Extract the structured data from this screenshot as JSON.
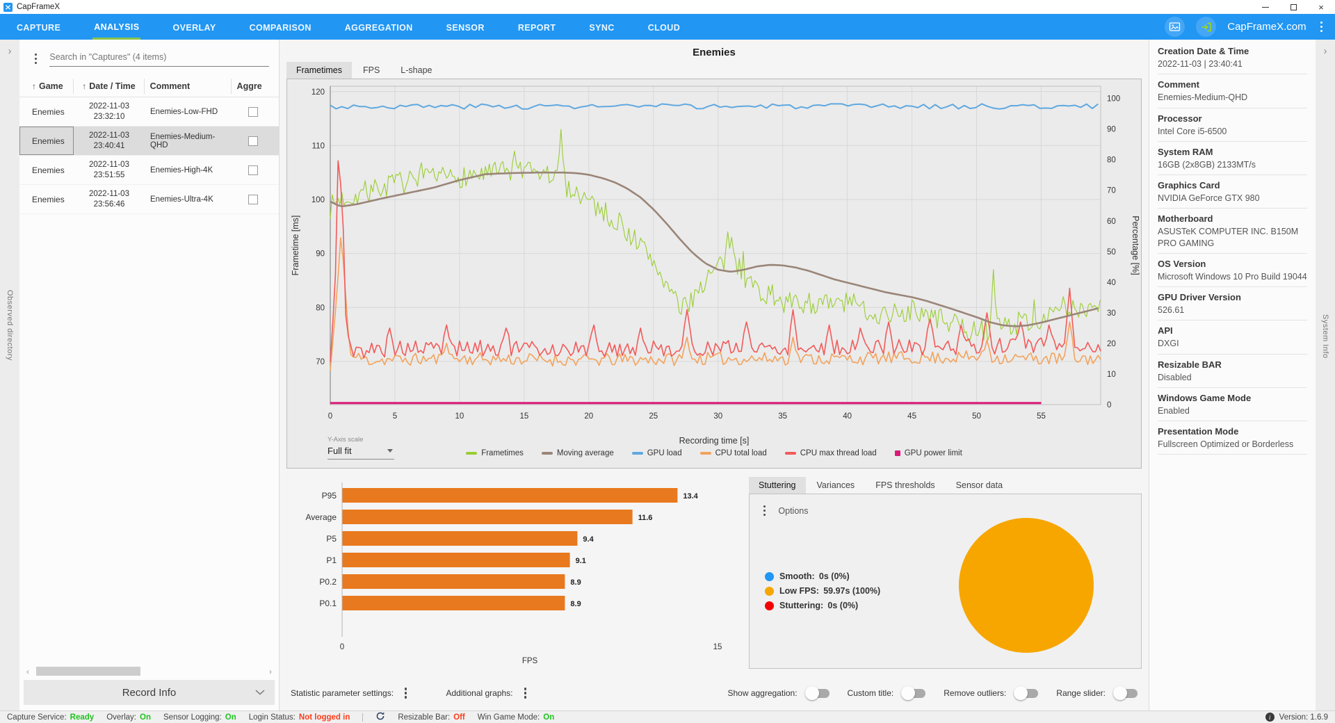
{
  "window": {
    "title": "CapFrameX",
    "app_icon": "capframex-logo"
  },
  "navbar": {
    "items": [
      "CAPTURE",
      "ANALYSIS",
      "OVERLAY",
      "COMPARISON",
      "AGGREGATION",
      "SENSOR",
      "REPORT",
      "SYNC",
      "CLOUD"
    ],
    "active": "ANALYSIS",
    "site_link": "CapFrameX.com",
    "accent": "#2196F3",
    "active_underline": "#8BC34A"
  },
  "left_rail": {
    "label": "Observed directory"
  },
  "right_rail": {
    "label": "System Info"
  },
  "captures_panel": {
    "search_placeholder": "Search in \"Captures\" (4 items)",
    "columns": [
      "Game",
      "Date / Time",
      "Comment",
      "Aggre"
    ],
    "rows": [
      {
        "game": "Enemies",
        "date": "2022-11-03",
        "time": "23:32:10",
        "comment": "Enemies-Low-FHD",
        "selected": false,
        "checked": false
      },
      {
        "game": "Enemies",
        "date": "2022-11-03",
        "time": "23:40:41",
        "comment": "Enemies-Medium-QHD",
        "selected": true,
        "checked": false
      },
      {
        "game": "Enemies",
        "date": "2022-11-03",
        "time": "23:51:55",
        "comment": "Enemies-High-4K",
        "selected": false,
        "checked": false
      },
      {
        "game": "Enemies",
        "date": "2022-11-03",
        "time": "23:56:46",
        "comment": "Enemies-Ultra-4K",
        "selected": false,
        "checked": false
      }
    ],
    "record_info_label": "Record Info"
  },
  "chart_card": {
    "title": "Enemies",
    "tabs": [
      "Frametimes",
      "FPS",
      "L-shape"
    ],
    "active_tab": "Frametimes",
    "yaxis_scale_label": "Y-Axis scale",
    "yaxis_scale_value": "Full fit"
  },
  "chart_data": [
    {
      "type": "line",
      "title": "Enemies",
      "xlabel": "Recording time [s]",
      "ylabel_left": "Frametime [ms]",
      "ylabel_right": "Percentage [%]",
      "x_range": [
        0,
        59.6
      ],
      "x_ticks": [
        0,
        5,
        10,
        15,
        20,
        25,
        30,
        35,
        40,
        45,
        50,
        55
      ],
      "y_left_range": [
        62,
        121
      ],
      "y_left_ticks": [
        70,
        80,
        90,
        100,
        110,
        120
      ],
      "y_right_range": [
        0,
        104
      ],
      "y_right_ticks": [
        0,
        10,
        20,
        30,
        40,
        50,
        60,
        70,
        80,
        90,
        100
      ],
      "grid": true,
      "legend_position": "bottom",
      "series": [
        {
          "name": "Frametimes",
          "color": "#9ACD32",
          "axis": "left",
          "width": 1.1,
          "step": 0.15,
          "seed": 7,
          "noise": 2.1,
          "spike_chance": 0.04,
          "spike_max": 4.5,
          "trend": [
            [
              0,
              98.5
            ],
            [
              0.6,
              100
            ],
            [
              1.5,
              100.5
            ],
            [
              3,
              101.5
            ],
            [
              5,
              103
            ],
            [
              7,
              103.5
            ],
            [
              9,
              104
            ],
            [
              11,
              104.5
            ],
            [
              13,
              105
            ],
            [
              15,
              105
            ],
            [
              17,
              104.5
            ],
            [
              18,
              103
            ],
            [
              19,
              101.5
            ],
            [
              20,
              100
            ],
            [
              21,
              98
            ],
            [
              22,
              96
            ],
            [
              23,
              94
            ],
            [
              24,
              91.5
            ],
            [
              25,
              88.5
            ],
            [
              26,
              84.5
            ],
            [
              26.7,
              81
            ],
            [
              27.3,
              79.5
            ],
            [
              28,
              82
            ],
            [
              29,
              85
            ],
            [
              30,
              87.5
            ],
            [
              30.7,
              89
            ],
            [
              31.3,
              88.5
            ],
            [
              32,
              86
            ],
            [
              33,
              83.5
            ],
            [
              34,
              82
            ],
            [
              35,
              81
            ],
            [
              36,
              80.5
            ],
            [
              37,
              81
            ],
            [
              38,
              80.5
            ],
            [
              39,
              80.5
            ],
            [
              40,
              81
            ],
            [
              41,
              80
            ],
            [
              42,
              79
            ],
            [
              43,
              78.5
            ],
            [
              44,
              79
            ],
            [
              45,
              79.5
            ],
            [
              46,
              78.5
            ],
            [
              47,
              78
            ],
            [
              48,
              77
            ],
            [
              49,
              76
            ],
            [
              50,
              75.5
            ],
            [
              51,
              76
            ],
            [
              52,
              76.5
            ],
            [
              53,
              77
            ],
            [
              54,
              77.5
            ],
            [
              55,
              78
            ],
            [
              56,
              78.5
            ],
            [
              57,
              79
            ],
            [
              58,
              80
            ],
            [
              59,
              80.5
            ],
            [
              59.6,
              81
            ]
          ],
          "spikes": [
            [
              14.2,
              109
            ],
            [
              17.8,
              113
            ],
            [
              31,
              93
            ],
            [
              51.3,
              87
            ]
          ]
        },
        {
          "name": "Moving average",
          "color": "#9A8578",
          "axis": "left",
          "width": 2.6,
          "step": 0.3,
          "noise": 0,
          "trend": [
            [
              0,
              99.6
            ],
            [
              0.8,
              98.7
            ],
            [
              2,
              99.1
            ],
            [
              4,
              100.2
            ],
            [
              6,
              101.2
            ],
            [
              8,
              102.2
            ],
            [
              10,
              103.6
            ],
            [
              12,
              104.7
            ],
            [
              14,
              104.9
            ],
            [
              16,
              105
            ],
            [
              18,
              105
            ],
            [
              19,
              104.9
            ],
            [
              20,
              104.6
            ],
            [
              21,
              104
            ],
            [
              22,
              103.2
            ],
            [
              23,
              102
            ],
            [
              24,
              100.4
            ],
            [
              25,
              98.2
            ],
            [
              26,
              95.6
            ],
            [
              27,
              92.8
            ],
            [
              28,
              90.2
            ],
            [
              29,
              88.2
            ],
            [
              30,
              87
            ],
            [
              31,
              86.6
            ],
            [
              32,
              87
            ],
            [
              33,
              87.6
            ],
            [
              34,
              87.9
            ],
            [
              35,
              87.8
            ],
            [
              36,
              87.4
            ],
            [
              37,
              86.8
            ],
            [
              38,
              86
            ],
            [
              39,
              85.2
            ],
            [
              41,
              84
            ],
            [
              43,
              82.8
            ],
            [
              45,
              81.9
            ],
            [
              46,
              81.3
            ],
            [
              48,
              79.8
            ],
            [
              50,
              78.2
            ],
            [
              51,
              77.3
            ],
            [
              52,
              76.7
            ],
            [
              53,
              76.5
            ],
            [
              54,
              76.7
            ],
            [
              55,
              77.2
            ],
            [
              56,
              77.8
            ],
            [
              57,
              78.4
            ],
            [
              58,
              79
            ],
            [
              59,
              79.6
            ],
            [
              59.6,
              80
            ]
          ]
        },
        {
          "name": "GPU load",
          "color": "#5FA8E0",
          "axis": "right",
          "width": 2,
          "step": 0.45,
          "seed": 3,
          "noise": 0.85,
          "max": 99,
          "trend": [
            [
              0,
              97.4
            ],
            [
              59.6,
              97.4
            ]
          ]
        },
        {
          "name": "CPU total load",
          "color": "#F2A35C",
          "axis": "right",
          "width": 1.6,
          "step": 0.2,
          "seed": 11,
          "noise": 2.1,
          "min": 7,
          "trend": [
            [
              0,
              11
            ],
            [
              0.4,
              30
            ],
            [
              0.8,
              53
            ],
            [
              1.1,
              44
            ],
            [
              1.5,
              16
            ],
            [
              3,
              14.5
            ],
            [
              10,
              15
            ],
            [
              20,
              14.5
            ],
            [
              30,
              15
            ],
            [
              40,
              15
            ],
            [
              50,
              15.5
            ],
            [
              55,
              15
            ],
            [
              59.6,
              15
            ]
          ],
          "spikes": [
            [
              9,
              20
            ],
            [
              27.6,
              22
            ],
            [
              35.8,
              22
            ],
            [
              50.8,
              21
            ],
            [
              57.3,
              27
            ]
          ]
        },
        {
          "name": "CPU max thread load",
          "color": "#F25A5A",
          "axis": "right",
          "width": 1.6,
          "step": 0.2,
          "seed": 5,
          "noise": 2.6,
          "min": 11,
          "trend": [
            [
              0,
              13
            ],
            [
              0.35,
              35
            ],
            [
              0.6,
              79
            ],
            [
              0.9,
              72
            ],
            [
              1.2,
              28
            ],
            [
              1.6,
              17
            ],
            [
              3,
              18
            ],
            [
              10,
              18.5
            ],
            [
              20,
              18
            ],
            [
              30,
              18.5
            ],
            [
              40,
              18.5
            ],
            [
              50,
              19
            ],
            [
              57,
              19.5
            ],
            [
              59.6,
              18.5
            ]
          ],
          "spikes": [
            [
              4.5,
              25
            ],
            [
              9,
              26
            ],
            [
              13.5,
              25
            ],
            [
              20.3,
              26
            ],
            [
              24,
              25
            ],
            [
              27.6,
              31
            ],
            [
              32.2,
              27
            ],
            [
              35.8,
              31
            ],
            [
              38.5,
              26
            ],
            [
              41,
              25
            ],
            [
              43.2,
              27
            ],
            [
              46.4,
              28
            ],
            [
              48.8,
              26
            ],
            [
              50.8,
              30
            ],
            [
              53.4,
              27
            ],
            [
              55.6,
              26
            ],
            [
              57.3,
              38
            ]
          ]
        },
        {
          "name": "GPU power limit",
          "color": "#DA1A78",
          "axis": "right",
          "width": 3,
          "step": 5,
          "noise": 0,
          "trend": [
            [
              0,
              0.5
            ],
            [
              59.6,
              0.5
            ]
          ]
        }
      ]
    },
    {
      "type": "bar",
      "orientation": "horizontal",
      "categories": [
        "P95",
        "Average",
        "P5",
        "P1",
        "P0.2",
        "P0.1"
      ],
      "values": [
        13.4,
        11.6,
        9.4,
        9.1,
        8.9,
        8.9
      ],
      "xlabel": "FPS",
      "xlim": [
        0,
        15
      ],
      "x_ticks": [
        0,
        15
      ],
      "bar_color": "#E8791E"
    },
    {
      "type": "pie",
      "slices": [
        {
          "label": "Smooth",
          "value": 0,
          "color": "#2196F3"
        },
        {
          "label": "Low FPS",
          "value": 59.97,
          "color": "#F7A600"
        },
        {
          "label": "Stuttering",
          "value": 0,
          "color": "#F50000"
        }
      ],
      "unit": "s"
    }
  ],
  "stutter_panel": {
    "tabs": [
      "Stuttering",
      "Variances",
      "FPS thresholds",
      "Sensor data"
    ],
    "active_tab": "Stuttering",
    "options_label": "Options",
    "legend": [
      {
        "label": "Smooth:",
        "value": "0s (0%)",
        "color": "#2196F3"
      },
      {
        "label": "Low FPS:",
        "value": "59.97s (100%)",
        "color": "#F7A600"
      },
      {
        "label": "Stuttering:",
        "value": "0s (0%)",
        "color": "#F50000"
      }
    ]
  },
  "footer_controls": {
    "menus": [
      "Statistic parameter settings:",
      "Additional graphs:"
    ],
    "toggles": [
      {
        "label": "Show aggregation:",
        "on": false
      },
      {
        "label": "Custom title:",
        "on": false
      },
      {
        "label": "Remove outliers:",
        "on": false
      },
      {
        "label": "Range slider:",
        "on": false
      }
    ]
  },
  "system_info": {
    "entries": [
      {
        "label": "Creation Date & Time",
        "value": "2022-11-03  |  23:40:41"
      },
      {
        "label": "Comment",
        "value": "Enemies-Medium-QHD"
      },
      {
        "label": "Processor",
        "value": "Intel Core i5-6500"
      },
      {
        "label": "System RAM",
        "value": "16GB (2x8GB) 2133MT/s"
      },
      {
        "label": "Graphics Card",
        "value": "NVIDIA GeForce GTX 980"
      },
      {
        "label": "Motherboard",
        "value": "ASUSTeK COMPUTER INC. B150M PRO GAMING"
      },
      {
        "label": "OS Version",
        "value": "Microsoft Windows 10 Pro Build 19044"
      },
      {
        "label": "GPU Driver Version",
        "value": "526.61"
      },
      {
        "label": "API",
        "value": "DXGI"
      },
      {
        "label": "Resizable BAR",
        "value": "Disabled"
      },
      {
        "label": "Windows Game Mode",
        "value": "Enabled"
      },
      {
        "label": "Presentation Mode",
        "value": "Fullscreen Optimized or Borderless"
      }
    ]
  },
  "status_bar": {
    "items": [
      {
        "type": "stat",
        "label": "Capture Service:",
        "value": "Ready",
        "color": "#1FC31F"
      },
      {
        "type": "stat",
        "label": "Overlay:",
        "value": "On",
        "color": "#1FC31F"
      },
      {
        "type": "stat",
        "label": "Sensor Logging:",
        "value": "On",
        "color": "#1FC31F"
      },
      {
        "type": "stat",
        "label": "Login Status:",
        "value": "Not logged in",
        "color": "#FB3E1C"
      },
      {
        "type": "divider"
      },
      {
        "type": "icon",
        "name": "refresh-icon"
      },
      {
        "type": "stat",
        "label": "Resizable Bar:",
        "value": "Off",
        "color": "#FB3E1C"
      },
      {
        "type": "stat",
        "label": "Win Game Mode:",
        "value": "On",
        "color": "#1FC31F"
      }
    ],
    "version": "Version: 1.6.9"
  }
}
